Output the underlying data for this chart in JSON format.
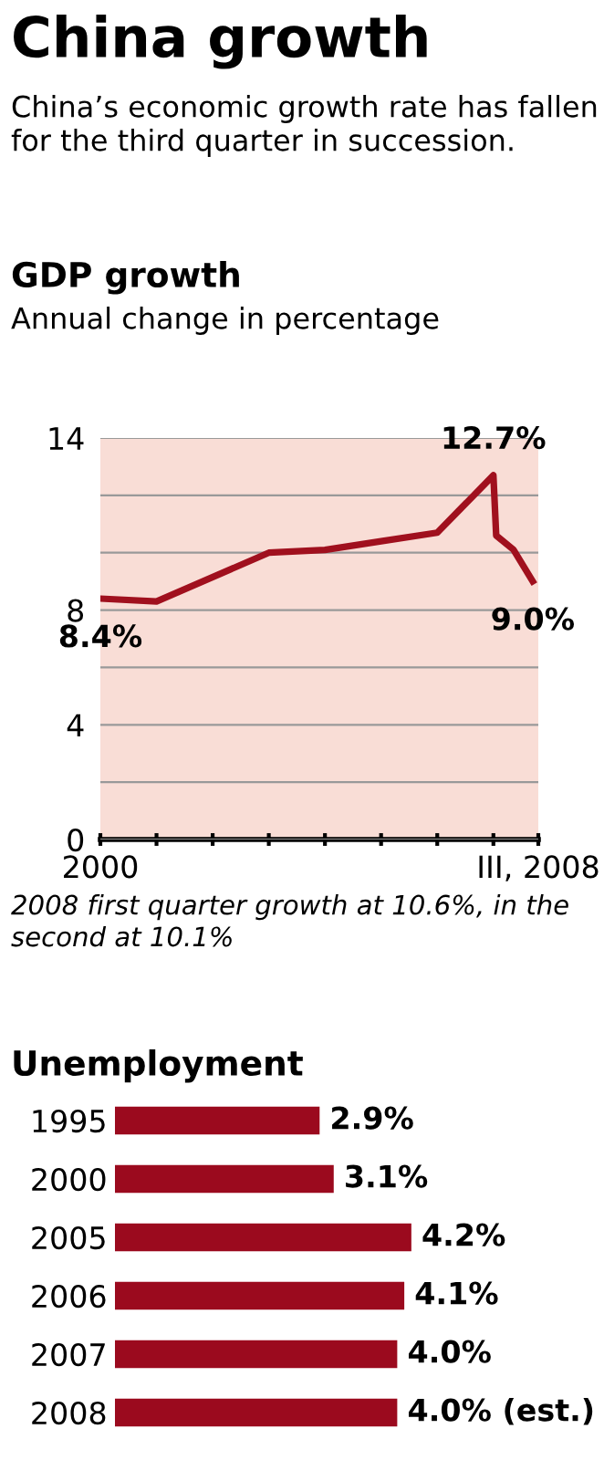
{
  "chart_data": [
    {
      "type": "other",
      "title": "China growth",
      "subtitle": "China’s economic growth rate has fallen for the third quarter in succession."
    },
    {
      "type": "line",
      "title": "GDP growth",
      "subtitle": "Annual change in percentage",
      "x": [
        2000,
        2001,
        2003,
        2004,
        2005,
        2006,
        2007,
        2007.05,
        2007.36,
        2007.7
      ],
      "series": [
        {
          "color": "#a0101e",
          "values": [
            8.4,
            8.3,
            10.0,
            10.1,
            10.4,
            10.7,
            12.7,
            10.6,
            10.1,
            9.0
          ],
          "value_labels": [
            "8.4%",
            null,
            null,
            null,
            null,
            null,
            "12.7%",
            null,
            null,
            "9.0%"
          ]
        }
      ],
      "xlim": [
        2000,
        2007.8
      ],
      "xticks": [
        {
          "value": 2000,
          "label": "2000"
        },
        {
          "value": 2001,
          "label": null
        },
        {
          "value": 2002,
          "label": null
        },
        {
          "value": 2003,
          "label": null
        },
        {
          "value": 2004,
          "label": null
        },
        {
          "value": 2005,
          "label": null
        },
        {
          "value": 2006,
          "label": null
        },
        {
          "value": 2007,
          "label": null
        },
        {
          "value": 2007.8,
          "label": "III, 2008"
        }
      ],
      "ylim": [
        0,
        14
      ],
      "yticks": [
        0,
        {
          "value": 2,
          "label": null
        },
        4,
        {
          "value": 6,
          "label": null
        },
        8,
        {
          "value": 10,
          "label": null
        },
        {
          "value": 12,
          "label": null
        },
        14
      ],
      "grid": "y",
      "marker": "none",
      "line_style": "solid",
      "annotations": [
        "2008 first quarter growth at 10.6%, in the second at 10.1%"
      ]
    },
    {
      "type": "bar",
      "orientation": "horizontal",
      "title": "Unemployment",
      "categories": [
        "1995",
        "2000",
        "2005",
        "2006",
        "2007",
        "2008"
      ],
      "values": [
        2.9,
        3.1,
        4.2,
        4.1,
        4.0,
        4.0
      ],
      "color": "#9b0a1e",
      "value_labels": [
        "2.9%",
        "3.1%",
        "4.2%",
        "4.1%",
        "4.0%",
        "4.0% (est.)"
      ],
      "tick_labels": "y"
    }
  ]
}
